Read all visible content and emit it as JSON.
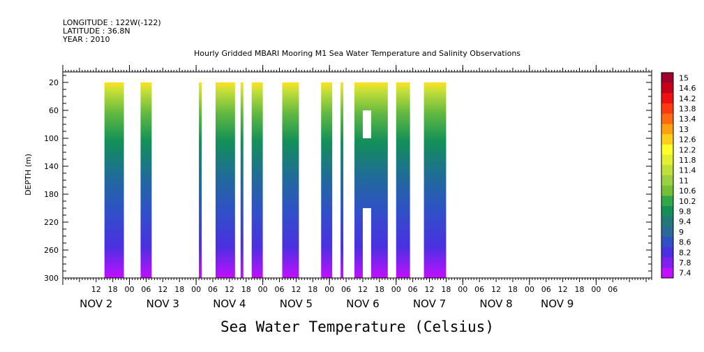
{
  "header": {
    "longitude": "LONGITUDE : 122W(-122)",
    "latitude": "LATITUDE : 36.8N",
    "year": "YEAR : 2010",
    "title": "Hourly Gridded MBARI Mooring M1 Sea Water Temperature and Salinity Observations"
  },
  "chart_data": {
    "type": "heatmap",
    "title": "Hourly Gridded MBARI Mooring M1 Sea Water Temperature and Salinity Observations",
    "xlabel": "",
    "ylabel": "DEPTH (m)",
    "colorbar_title": "Sea Water Temperature (Celsius)",
    "x_hours_range": [
      0,
      212
    ],
    "ylim": [
      5,
      300
    ],
    "y_reversed": true,
    "y_ticks": [
      20,
      60,
      100,
      140,
      180,
      220,
      260,
      300
    ],
    "x_hour_ticks": [
      "12",
      "18",
      "00",
      "06",
      "12",
      "18",
      "00",
      "06",
      "12",
      "18",
      "00",
      "06",
      "12",
      "18",
      "00",
      "06",
      "12",
      "18",
      "00",
      "06",
      "12",
      "18",
      "00",
      "06",
      "12",
      "18",
      "00",
      "06",
      "12",
      "18",
      "00",
      "06"
    ],
    "x_date_labels": [
      "NOV 2",
      "NOV 3",
      "NOV 4",
      "NOV 5",
      "NOV 6",
      "NOV 7",
      "NOV 8",
      "NOV 9"
    ],
    "x_date_hours": [
      12,
      36,
      60,
      84,
      108,
      132,
      156,
      178
    ],
    "colorbar_levels": [
      "15",
      "14.6",
      "14.2",
      "13.8",
      "13.4",
      "13",
      "12.6",
      "12.2",
      "11.8",
      "11.4",
      "11",
      "10.6",
      "10.2",
      "9.8",
      "9.4",
      "9",
      "8.6",
      "8.2",
      "7.8",
      "7.4"
    ],
    "colorbar_colors": [
      "#a0002a",
      "#c80018",
      "#ee1010",
      "#ff3a10",
      "#ff6a10",
      "#ffa010",
      "#ffd018",
      "#ffff28",
      "#e0f030",
      "#c0e038",
      "#9cd040",
      "#76c038",
      "#30a848",
      "#139058",
      "#227a78",
      "#2a6a98",
      "#3050c8",
      "#4a30e0",
      "#8020f0",
      "#c010ff"
    ],
    "data_blocks_hours": [
      [
        15,
        22
      ],
      [
        28,
        32
      ],
      [
        49,
        50
      ],
      [
        55,
        62
      ],
      [
        64,
        65
      ],
      [
        68,
        72
      ],
      [
        79,
        85
      ],
      [
        93,
        97
      ],
      [
        100,
        101
      ],
      [
        105,
        117
      ],
      [
        120,
        125
      ],
      [
        130,
        138
      ]
    ],
    "data_gaps": [
      {
        "hours": [
          108,
          111
        ],
        "depth": [
          60,
          100
        ]
      },
      {
        "hours": [
          108,
          111
        ],
        "depth": [
          200,
          300
        ]
      }
    ]
  }
}
